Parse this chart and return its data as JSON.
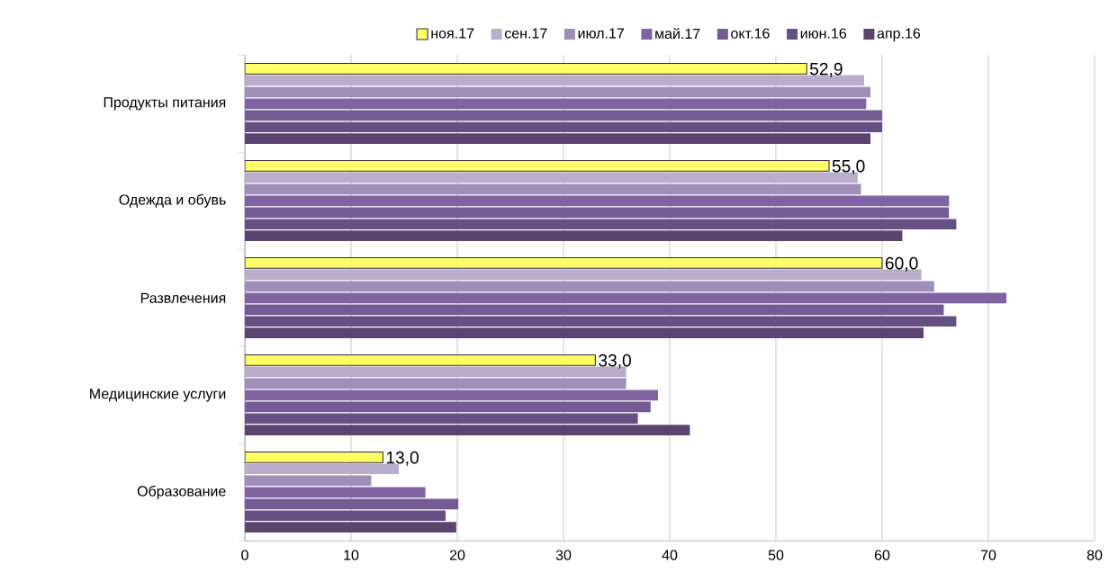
{
  "chart_data": {
    "type": "bar",
    "orientation": "horizontal",
    "categories": [
      "Продукты питания",
      "Одежда и обувь",
      "Развлечения",
      "Медицинские услуги",
      "Образование"
    ],
    "series": [
      {
        "name": "ноя.17",
        "color": "#ffff66",
        "values": [
          52.9,
          55.0,
          60.0,
          33.0,
          13.0
        ],
        "value_labels": [
          "52,9",
          "55,0",
          "60,0",
          "33,0",
          "13,0"
        ]
      },
      {
        "name": "сен.17",
        "color": "#b8adcb",
        "values": [
          58.3,
          57.7,
          63.7,
          35.9,
          14.5
        ]
      },
      {
        "name": "июл.17",
        "color": "#9f8fb8",
        "values": [
          58.9,
          58.0,
          64.9,
          35.9,
          11.9
        ]
      },
      {
        "name": "май.17",
        "color": "#8064a2",
        "values": [
          58.5,
          66.3,
          71.7,
          38.9,
          17.0
        ]
      },
      {
        "name": "окт.16",
        "color": "#745b93",
        "values": [
          60.0,
          66.3,
          65.8,
          38.2,
          20.1
        ]
      },
      {
        "name": "июн.16",
        "color": "#665083",
        "values": [
          60.0,
          67.0,
          67.0,
          37.0,
          18.9
        ]
      },
      {
        "name": "апр.16",
        "color": "#5b4570",
        "values": [
          58.9,
          61.9,
          63.9,
          41.9,
          19.9
        ]
      }
    ],
    "xlim": [
      0,
      80
    ],
    "xticks": [
      0,
      10,
      20,
      30,
      40,
      50,
      60,
      70,
      80
    ],
    "grid": "x",
    "legend": "top"
  }
}
